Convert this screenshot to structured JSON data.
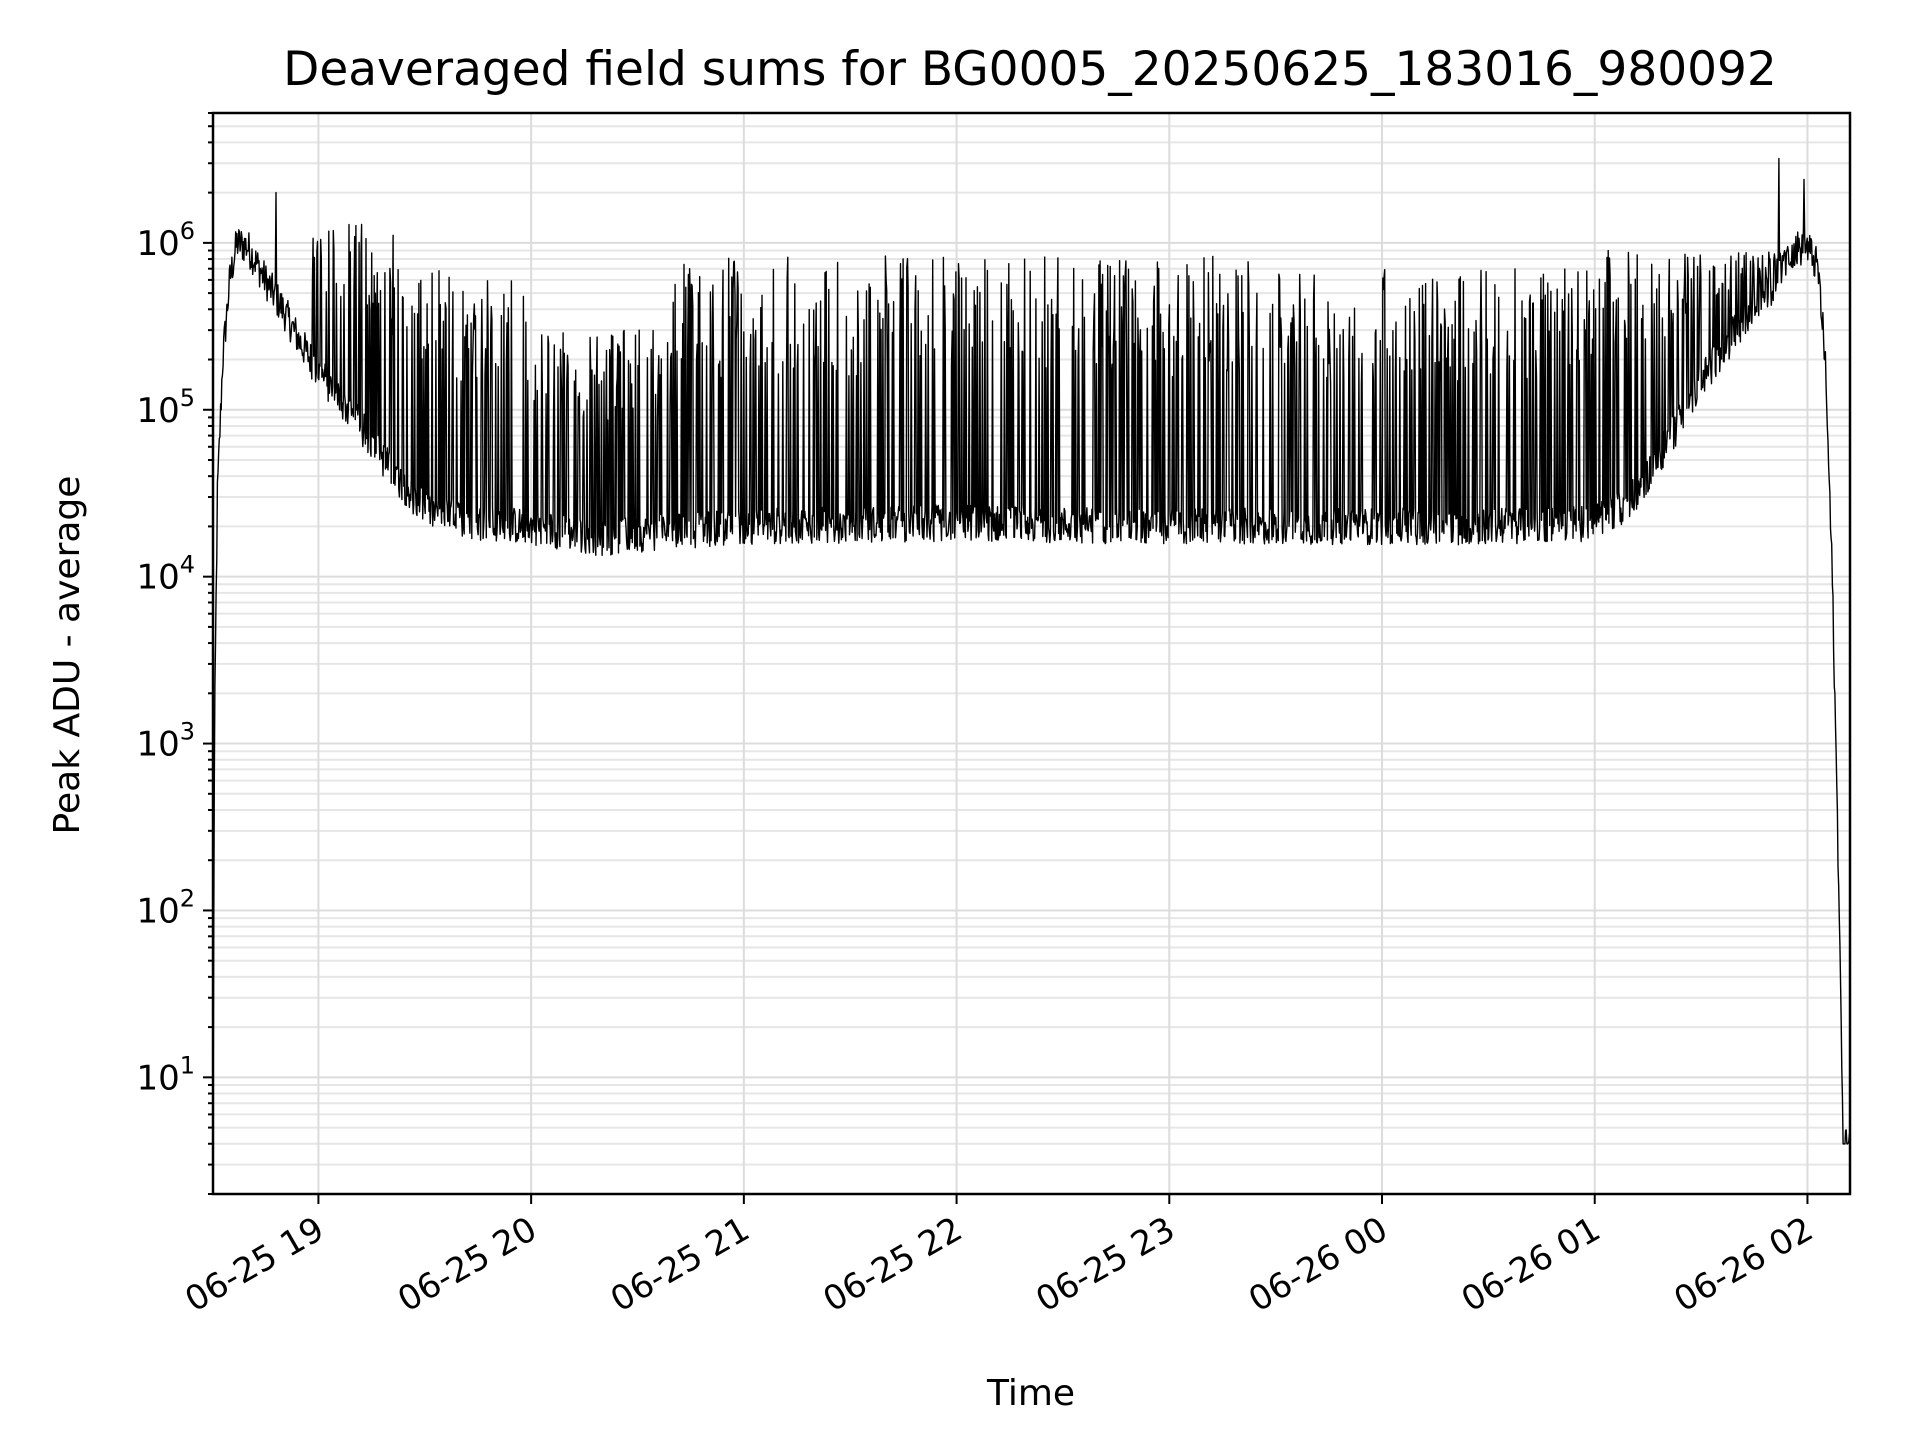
{
  "chart_data": {
    "type": "line",
    "title": "Deaveraged field sums for BG0005_20250625_183016_980092",
    "xlabel": "Time",
    "ylabel": "Peak ADU - average",
    "yscale": "log",
    "ylim": [
      2,
      6000000
    ],
    "xlim": [
      "2025-06-25 18:30:16",
      "2025-06-26 02:12:00"
    ],
    "grid": true,
    "legend": "none",
    "line_color": "#000000",
    "x_ticks": [
      "06-25 19",
      "06-25 20",
      "06-25 21",
      "06-25 22",
      "06-25 23",
      "06-26 00",
      "06-26 01",
      "06-26 02"
    ],
    "x_tick_times": [
      "2025-06-25 19:00",
      "2025-06-25 20:00",
      "2025-06-25 21:00",
      "2025-06-25 22:00",
      "2025-06-25 23:00",
      "2025-06-26 00:00",
      "2025-06-26 01:00",
      "2025-06-26 02:00"
    ],
    "y_ticks": [
      {
        "base": "10",
        "exp": "1",
        "value": 10
      },
      {
        "base": "10",
        "exp": "2",
        "value": 100
      },
      {
        "base": "10",
        "exp": "3",
        "value": 1000
      },
      {
        "base": "10",
        "exp": "4",
        "value": 10000
      },
      {
        "base": "10",
        "exp": "5",
        "value": 100000
      },
      {
        "base": "10",
        "exp": "6",
        "value": 1000000
      }
    ],
    "series": [
      {
        "baseline": {
          "x": [
            "2025-06-25 18:30:16",
            "2025-06-25 18:30:40",
            "2025-06-25 18:31:30",
            "2025-06-25 18:33:00",
            "2025-06-25 18:35:00",
            "2025-06-25 18:37:00",
            "2025-06-25 18:40:00",
            "2025-06-25 18:45:00",
            "2025-06-25 18:50:00",
            "2025-06-25 18:55:00",
            "2025-06-25 19:00:00",
            "2025-06-25 19:10:00",
            "2025-06-25 19:20:00",
            "2025-06-25 19:30:00",
            "2025-06-25 19:45:00",
            "2025-06-25 20:00:00",
            "2025-06-25 20:20:00",
            "2025-06-25 20:30:00",
            "2025-06-25 20:45:00",
            "2025-06-25 21:00:00",
            "2025-06-25 22:00:00",
            "2025-06-25 23:00:00",
            "2025-06-26 00:00:00",
            "2025-06-26 00:30:00",
            "2025-06-26 01:00:00",
            "2025-06-26 01:10:00",
            "2025-06-26 01:20:00",
            "2025-06-26 01:30:00",
            "2025-06-26 01:40:00",
            "2025-06-26 01:50:00",
            "2025-06-26 01:55:00",
            "2025-06-26 02:00:00",
            "2025-06-26 02:03:00",
            "2025-06-26 02:05:00",
            "2025-06-26 02:07:00",
            "2025-06-26 02:09:00",
            "2025-06-26 02:10:00",
            "2025-06-26 02:12:00"
          ],
          "y": [
            4,
            1000,
            30000,
            200000,
            600000,
            1000000,
            950000,
            600000,
            400000,
            250000,
            170000,
            90000,
            45000,
            25000,
            21000,
            20000,
            17000,
            18000,
            19000,
            20000,
            21000,
            20000,
            20000,
            20000,
            21000,
            28000,
            60000,
            150000,
            300000,
            550000,
            900000,
            950000,
            700000,
            200000,
            10000,
            100,
            4,
            4
          ]
        },
        "spike_max": [
          {
            "from": "2025-06-25 18:30:16",
            "to": "2025-06-25 18:58:00",
            "max": 0
          },
          {
            "from": "2025-06-25 18:58:00",
            "to": "2025-06-25 19:25:00",
            "max": 1300000
          },
          {
            "from": "2025-06-25 19:25:00",
            "to": "2025-06-25 20:00:00",
            "max": 700000
          },
          {
            "from": "2025-06-25 20:00:00",
            "to": "2025-06-25 20:40:00",
            "max": 300000
          },
          {
            "from": "2025-06-25 20:40:00",
            "to": "2025-06-25 23:30:00",
            "max": 850000
          },
          {
            "from": "2025-06-25 23:30:00",
            "to": "2025-06-26 01:00:00",
            "max": 700000
          },
          {
            "from": "2025-06-26 01:00:00",
            "to": "2025-06-26 01:55:00",
            "max": 900000
          },
          {
            "from": "2025-06-26 01:55:00",
            "to": "2025-06-26 02:12:00",
            "max": 0
          }
        ],
        "peaks": [
          {
            "x": "2025-06-25 18:48:00",
            "y": 2000000
          },
          {
            "x": "2025-06-26 01:52:00",
            "y": 3200000
          },
          {
            "x": "2025-06-26 01:59:00",
            "y": 2400000
          }
        ]
      }
    ]
  }
}
